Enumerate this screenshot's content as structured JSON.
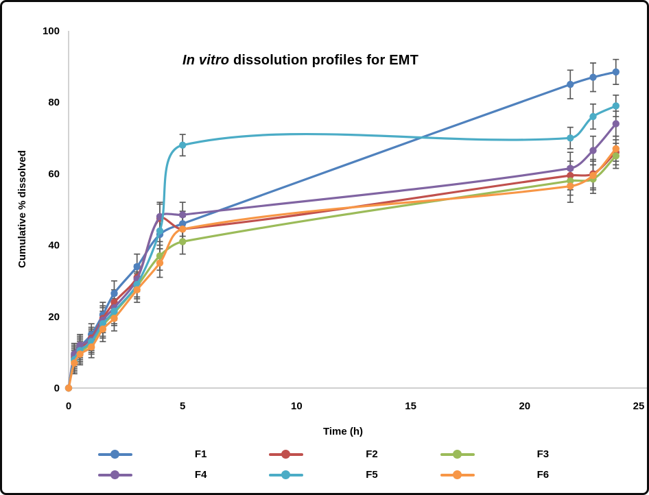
{
  "chart_data": {
    "type": "line",
    "title_italic": "In vitro",
    "title_rest": " dissolution profiles for EMT",
    "xlabel": "Time (h)",
    "ylabel": "Cumulative % dissolved",
    "xlim": [
      0,
      25
    ],
    "ylim": [
      0,
      100
    ],
    "xticks": [
      0,
      5,
      10,
      15,
      20,
      25
    ],
    "yticks": [
      0,
      20,
      40,
      60,
      80,
      100
    ],
    "grid": false,
    "smooth_lines": true,
    "legend_position": "bottom",
    "axis_color": "#bfbfbf",
    "error_bar_color": "#595959",
    "x": [
      0,
      0.25,
      0.5,
      1,
      1.5,
      2,
      3,
      4,
      5,
      22,
      23,
      24
    ],
    "series": [
      {
        "name": "F1",
        "color": "#4F81BD",
        "values": [
          0,
          9,
          11.5,
          15,
          20.5,
          26.5,
          34,
          43,
          46,
          85,
          87,
          88.5
        ],
        "errors": [
          0,
          3,
          3,
          3,
          3.5,
          3.5,
          3.5,
          4,
          3.5,
          4,
          4,
          3.5
        ]
      },
      {
        "name": "F2",
        "color": "#C0504D",
        "values": [
          0,
          8.5,
          11,
          14,
          19.5,
          24,
          31,
          47.5,
          44.5,
          59.5,
          60,
          66
        ],
        "errors": [
          0,
          3,
          3,
          3,
          3.5,
          3.5,
          3.5,
          4,
          3.5,
          4,
          4,
          3.5
        ]
      },
      {
        "name": "F3",
        "color": "#9BBB59",
        "values": [
          0,
          7.5,
          10,
          12.5,
          17.5,
          21,
          28.5,
          37,
          41,
          58,
          58.5,
          65
        ],
        "errors": [
          0,
          3,
          3,
          3,
          3.5,
          3.5,
          3.5,
          4,
          3.5,
          4,
          4,
          3.5
        ]
      },
      {
        "name": "F4",
        "color": "#8064A2",
        "values": [
          0,
          9.5,
          12,
          13.5,
          19,
          22.5,
          30.5,
          48,
          48.5,
          61.5,
          66.5,
          74
        ],
        "errors": [
          0,
          3,
          3,
          3,
          3.5,
          3.5,
          3.5,
          4,
          3.5,
          4.5,
          4,
          3.5
        ]
      },
      {
        "name": "F5",
        "color": "#4BACC6",
        "values": [
          0,
          8,
          10.5,
          13,
          18,
          21.5,
          29,
          44,
          68,
          70,
          76,
          79
        ],
        "errors": [
          0,
          3,
          3,
          3,
          3.5,
          3.5,
          3.5,
          4,
          3,
          3,
          3.5,
          3
        ]
      },
      {
        "name": "F6",
        "color": "#F79646",
        "values": [
          0,
          7,
          9.5,
          11.5,
          16.5,
          19.5,
          27.5,
          35,
          44.5,
          56.5,
          59.5,
          67
        ],
        "errors": [
          0,
          3,
          3,
          3,
          3.5,
          3.5,
          3.5,
          4,
          3.5,
          4.5,
          4,
          3.5
        ]
      }
    ],
    "legend_rows": [
      [
        "F1",
        "F2",
        "F3"
      ],
      [
        "F4",
        "F5",
        "F6"
      ]
    ]
  }
}
